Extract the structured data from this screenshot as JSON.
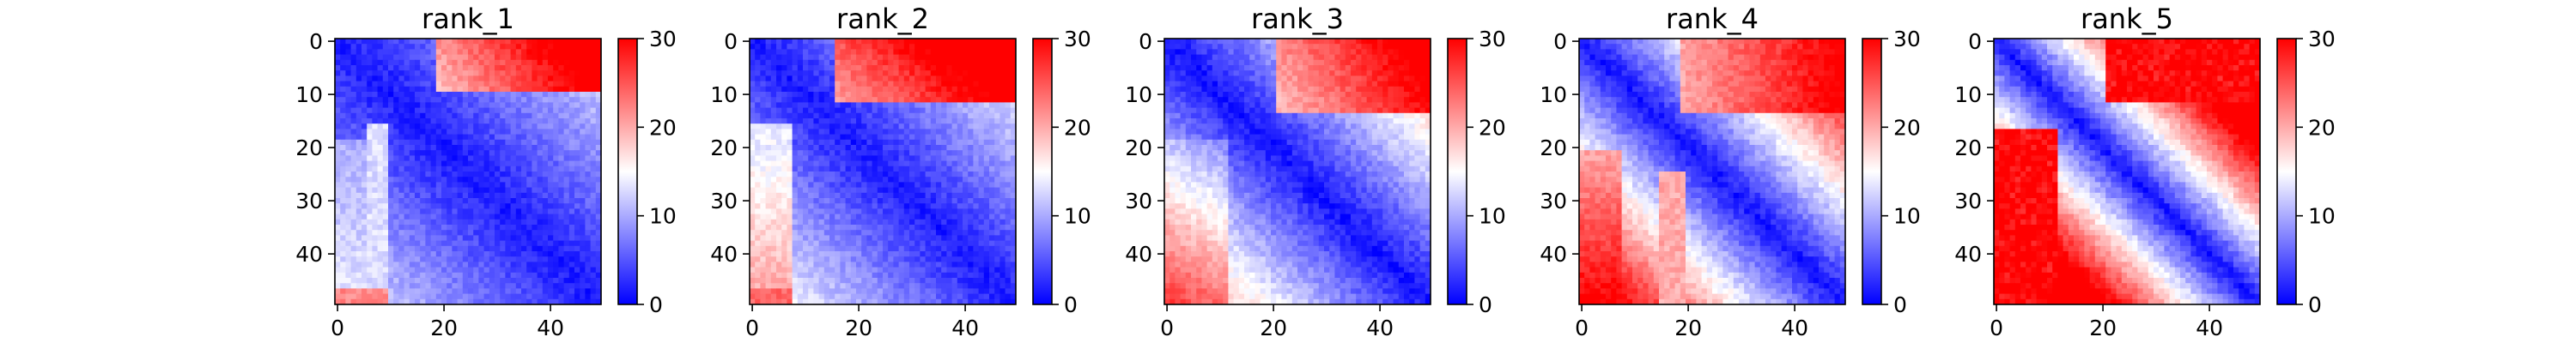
{
  "figure": {
    "colormap": {
      "name": "bwr",
      "low": "#0000ff",
      "mid": "#ffffff",
      "high": "#ff0000"
    }
  },
  "chart_data": [
    {
      "type": "heatmap",
      "title": "rank_1",
      "matrix_size": 50,
      "xlim": [
        0,
        49
      ],
      "ylim": [
        49,
        0
      ],
      "xticks": [
        0,
        20,
        40
      ],
      "yticks": [
        0,
        10,
        20,
        30,
        40
      ],
      "colorbar": {
        "range": [
          0,
          30
        ],
        "ticks": [
          0,
          10,
          20,
          30
        ]
      }
    },
    {
      "type": "heatmap",
      "title": "rank_2",
      "matrix_size": 50,
      "xlim": [
        0,
        49
      ],
      "ylim": [
        49,
        0
      ],
      "xticks": [
        0,
        20,
        40
      ],
      "yticks": [
        0,
        10,
        20,
        30,
        40
      ],
      "colorbar": {
        "range": [
          0,
          30
        ],
        "ticks": [
          0,
          10,
          20,
          30
        ]
      }
    },
    {
      "type": "heatmap",
      "title": "rank_3",
      "matrix_size": 50,
      "xlim": [
        0,
        49
      ],
      "ylim": [
        49,
        0
      ],
      "xticks": [
        0,
        20,
        40
      ],
      "yticks": [
        0,
        10,
        20,
        30,
        40
      ],
      "colorbar": {
        "range": [
          0,
          30
        ],
        "ticks": [
          0,
          10,
          20,
          30
        ]
      }
    },
    {
      "type": "heatmap",
      "title": "rank_4",
      "matrix_size": 50,
      "xlim": [
        0,
        49
      ],
      "ylim": [
        49,
        0
      ],
      "xticks": [
        0,
        20,
        40
      ],
      "yticks": [
        0,
        10,
        20,
        30,
        40
      ],
      "colorbar": {
        "range": [
          0,
          30
        ],
        "ticks": [
          0,
          10,
          20,
          30
        ]
      }
    },
    {
      "type": "heatmap",
      "title": "rank_5",
      "matrix_size": 50,
      "xlim": [
        0,
        49
      ],
      "ylim": [
        49,
        0
      ],
      "xticks": [
        0,
        20,
        40
      ],
      "yticks": [
        0,
        10,
        20,
        30,
        40
      ],
      "colorbar": {
        "range": [
          0,
          30
        ],
        "ticks": [
          0,
          10,
          20,
          30
        ]
      }
    }
  ]
}
